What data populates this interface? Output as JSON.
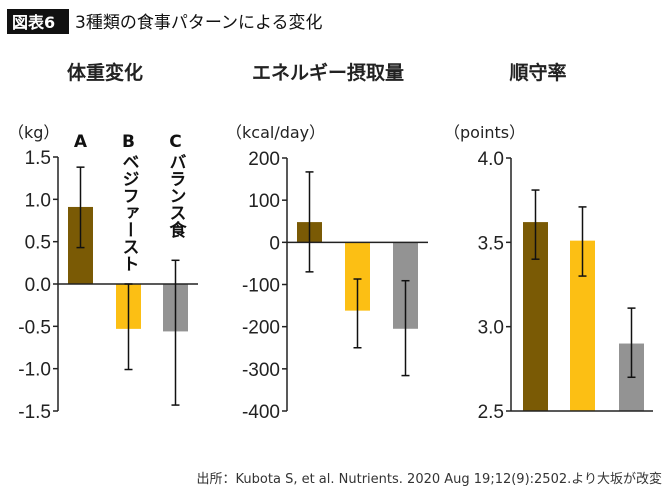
{
  "header": {
    "badge": "図表6",
    "title": "3種類の食事パターンによる変化"
  },
  "source": "出所：Kubota S, et al. Nutrients. 2020 Aug 19;12(9):2502.より大坂が改変",
  "colors": {
    "A": "#7a5a05",
    "B": "#fcbf14",
    "C": "#939393"
  },
  "categories": [
    {
      "letter": "A",
      "name": ""
    },
    {
      "letter": "B",
      "name": "ベジファースト"
    },
    {
      "letter": "C",
      "name": "バランス食"
    }
  ],
  "chart_data": [
    {
      "type": "bar",
      "title": "体重変化",
      "ylabel": "（kg）",
      "ylim": [
        -1.5,
        1.5
      ],
      "yticks": [
        "1.5",
        "1.0",
        "0.5",
        "0.0",
        "-0.5",
        "-1.0",
        "-1.5"
      ],
      "ytick_values": [
        1.5,
        1.0,
        0.5,
        0.0,
        -0.5,
        -1.0,
        -1.5
      ],
      "categories": [
        "A",
        "B",
        "C"
      ],
      "values": [
        0.91,
        -0.53,
        -0.56
      ],
      "error_low": [
        0.43,
        -1.01,
        -1.43
      ],
      "error_high": [
        1.38,
        0.0,
        0.28
      ],
      "baseline": 0,
      "grid": false
    },
    {
      "type": "bar",
      "title": "エネルギー摂取量",
      "ylabel": "（kcal/day）",
      "ylim": [
        -400,
        200
      ],
      "yticks": [
        "200",
        "100",
        "0",
        "-100",
        "-200",
        "-300",
        "-400"
      ],
      "ytick_values": [
        200,
        100,
        0,
        -100,
        -200,
        -300,
        -400
      ],
      "categories": [
        "A",
        "B",
        "C"
      ],
      "values": [
        48,
        -162,
        -205
      ],
      "error_low": [
        -70,
        -250,
        -316
      ],
      "error_high": [
        167,
        -87,
        -91
      ],
      "baseline": 0,
      "grid": false
    },
    {
      "type": "bar",
      "title": "順守率",
      "ylabel": "（points）",
      "ylim": [
        2.5,
        4.0
      ],
      "yticks": [
        "4.0",
        "3.5",
        "3.0",
        "2.5"
      ],
      "ytick_values": [
        4.0,
        3.5,
        3.0,
        2.5
      ],
      "categories": [
        "A",
        "B",
        "C"
      ],
      "values": [
        3.62,
        3.51,
        2.9
      ],
      "error_low": [
        3.4,
        3.3,
        2.7
      ],
      "error_high": [
        3.81,
        3.71,
        3.11
      ],
      "baseline": 2.5,
      "grid": false
    }
  ]
}
